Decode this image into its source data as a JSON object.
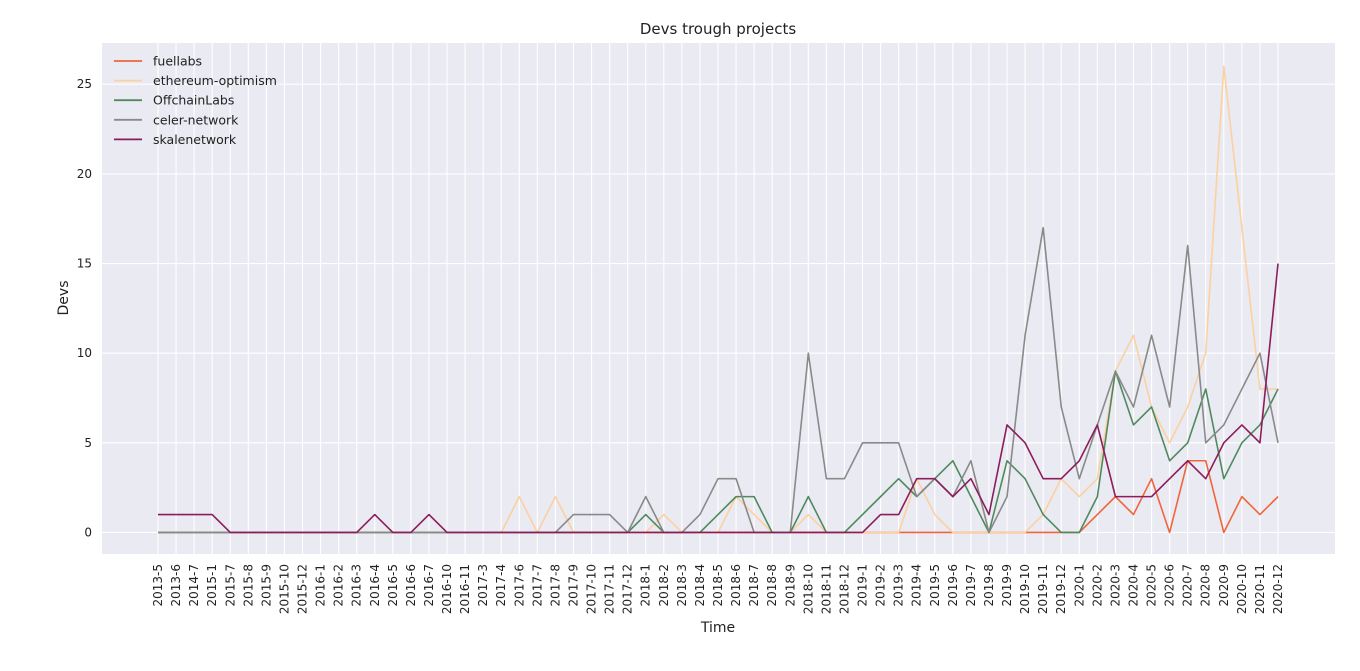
{
  "chart_data": {
    "type": "line",
    "title": "Devs trough projects",
    "xlabel": "Time",
    "ylabel": "Devs",
    "ylim": [
      -1.2,
      27.3
    ],
    "yticks": [
      0,
      5,
      10,
      15,
      20,
      25
    ],
    "grid": true,
    "legend_position": "top-left",
    "categories": [
      "2013-5",
      "2013-6",
      "2014-7",
      "2015-1",
      "2015-7",
      "2015-8",
      "2015-9",
      "2015-10",
      "2015-12",
      "2016-1",
      "2016-2",
      "2016-3",
      "2016-4",
      "2016-5",
      "2016-6",
      "2016-7",
      "2016-10",
      "2016-11",
      "2017-3",
      "2017-4",
      "2017-6",
      "2017-7",
      "2017-8",
      "2017-9",
      "2017-10",
      "2017-11",
      "2017-12",
      "2018-1",
      "2018-2",
      "2018-3",
      "2018-4",
      "2018-5",
      "2018-6",
      "2018-7",
      "2018-8",
      "2018-9",
      "2018-10",
      "2018-11",
      "2018-12",
      "2019-1",
      "2019-2",
      "2019-3",
      "2019-4",
      "2019-5",
      "2019-6",
      "2019-7",
      "2019-8",
      "2019-9",
      "2019-10",
      "2019-11",
      "2019-12",
      "2020-1",
      "2020-2",
      "2020-3",
      "2020-4",
      "2020-5",
      "2020-6",
      "2020-7",
      "2020-8",
      "2020-9",
      "2020-10",
      "2020-11",
      "2020-12"
    ],
    "series": [
      {
        "name": "fuellabs",
        "color": "#f0663c",
        "values": [
          0,
          0,
          0,
          0,
          0,
          0,
          0,
          0,
          0,
          0,
          0,
          0,
          0,
          0,
          0,
          0,
          0,
          0,
          0,
          0,
          0,
          0,
          0,
          0,
          0,
          0,
          0,
          0,
          0,
          0,
          0,
          0,
          0,
          0,
          0,
          0,
          0,
          0,
          0,
          0,
          0,
          0,
          0,
          0,
          0,
          0,
          0,
          0,
          0,
          0,
          0,
          0,
          1,
          2,
          1,
          3,
          0,
          4,
          4,
          0,
          2,
          1,
          2
        ]
      },
      {
        "name": "ethereum-optimism",
        "color": "#fdd0a2",
        "values": [
          0,
          0,
          0,
          0,
          0,
          0,
          0,
          0,
          0,
          0,
          0,
          0,
          0,
          0,
          0,
          0,
          0,
          0,
          0,
          0,
          2,
          0,
          2,
          0,
          0,
          0,
          0,
          0,
          1,
          0,
          0,
          0,
          2,
          1,
          0,
          0,
          1,
          0,
          0,
          0,
          0,
          0,
          3,
          1,
          0,
          0,
          0,
          0,
          0,
          1,
          3,
          2,
          3,
          9,
          11,
          7,
          5,
          7,
          10,
          26,
          17,
          8,
          8
        ]
      },
      {
        "name": "OffchainLabs",
        "color": "#4f8a5f",
        "values": [
          0,
          0,
          0,
          0,
          0,
          0,
          0,
          0,
          0,
          0,
          0,
          0,
          0,
          0,
          0,
          0,
          0,
          0,
          0,
          0,
          0,
          0,
          0,
          0,
          0,
          0,
          0,
          1,
          0,
          0,
          0,
          1,
          2,
          2,
          0,
          0,
          2,
          0,
          0,
          1,
          2,
          3,
          2,
          3,
          4,
          2,
          0,
          4,
          3,
          1,
          0,
          0,
          2,
          9,
          6,
          7,
          4,
          5,
          8,
          3,
          5,
          6,
          8
        ]
      },
      {
        "name": "celer-network",
        "color": "#8a8a8a",
        "values": [
          0,
          0,
          0,
          0,
          0,
          0,
          0,
          0,
          0,
          0,
          0,
          0,
          0,
          0,
          0,
          0,
          0,
          0,
          0,
          0,
          0,
          0,
          0,
          1,
          1,
          1,
          0,
          2,
          0,
          0,
          1,
          3,
          3,
          0,
          0,
          0,
          10,
          3,
          3,
          5,
          5,
          5,
          2,
          3,
          2,
          4,
          0,
          2,
          11,
          17,
          7,
          3,
          6,
          9,
          7,
          11,
          7,
          16,
          5,
          6,
          8,
          10,
          5
        ]
      },
      {
        "name": "skalenetwork",
        "color": "#8c1d5c",
        "values": [
          1,
          1,
          1,
          1,
          0,
          0,
          0,
          0,
          0,
          0,
          0,
          0,
          1,
          0,
          0,
          1,
          0,
          0,
          0,
          0,
          0,
          0,
          0,
          0,
          0,
          0,
          0,
          0,
          0,
          0,
          0,
          0,
          0,
          0,
          0,
          0,
          0,
          0,
          0,
          0,
          1,
          1,
          3,
          3,
          2,
          3,
          1,
          6,
          5,
          3,
          3,
          4,
          6,
          2,
          2,
          2,
          3,
          4,
          3,
          5,
          6,
          5,
          15
        ]
      }
    ]
  }
}
